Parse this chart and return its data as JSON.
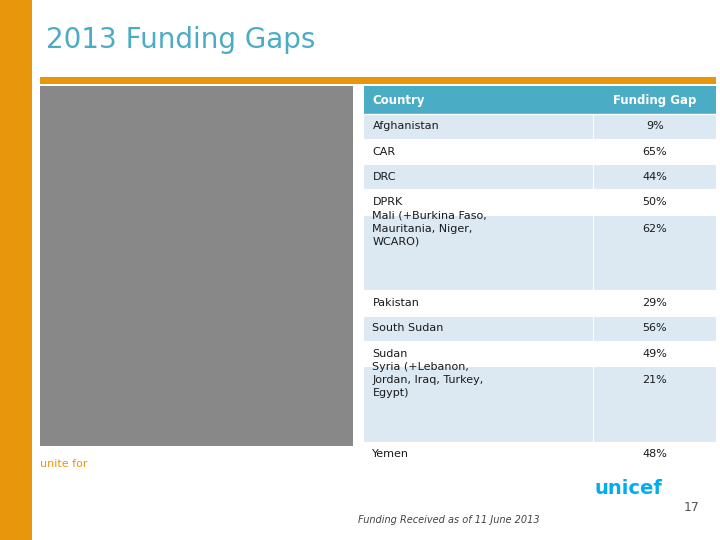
{
  "title": "2013 Funding Gaps",
  "subtitle": "Funding Received as of 11 June 2013",
  "page_number": "17",
  "bg_color": "#ffffff",
  "left_bar_color": "#e8960c",
  "title_color": "#4bacc6",
  "title_fontsize": 20,
  "header_bg_color": "#4bacc6",
  "header_text_color": "#ffffff",
  "row_colors": [
    "#dce9f3",
    "#ffffff"
  ],
  "col_header": [
    "Country",
    "Funding Gap"
  ],
  "rows": [
    [
      "Afghanistan",
      "9%"
    ],
    [
      "CAR",
      "65%"
    ],
    [
      "DRC",
      "44%"
    ],
    [
      "DPRK",
      "50%"
    ],
    [
      "Mali (+Burkina Faso,\nMauritania, Niger,\nWCARO)",
      "62%"
    ],
    [
      "Pakistan",
      "29%"
    ],
    [
      "South Sudan",
      "56%"
    ],
    [
      "Sudan",
      "49%"
    ],
    [
      "Syria (+Lebanon,\nJordan, Iraq, Turkey,\nEgypt)",
      "21%"
    ],
    [
      "Yemen",
      "48%"
    ]
  ],
  "unicef_color": "#00aeef",
  "unite_color": "#e8960c",
  "subtitle_color": "#444444",
  "divider_color": "#e8960c",
  "photo_color": "#888888",
  "col_split": 0.65
}
